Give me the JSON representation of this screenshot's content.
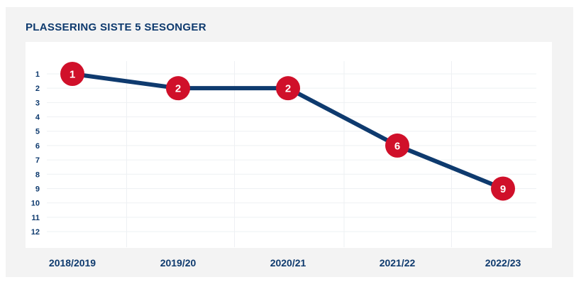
{
  "chart_data": {
    "type": "line",
    "title": "PLASSERING SISTE 5 SESONGER",
    "xlabel": "",
    "ylabel": "",
    "categories": [
      "2018/2019",
      "2019/20",
      "2020/21",
      "2021/22",
      "2022/23"
    ],
    "values": [
      1,
      2,
      2,
      6,
      9
    ],
    "data_labels": [
      "1",
      "2",
      "2",
      "6",
      "9"
    ],
    "y_ticks": [
      "1",
      "2",
      "3",
      "4",
      "5",
      "6",
      "7",
      "8",
      "9",
      "10",
      "11",
      "12"
    ],
    "ylim": [
      1,
      12
    ],
    "y_inverted": true,
    "grid": true,
    "colors": {
      "line": "#0e3a6e",
      "marker": "#d0102a",
      "grid": "#eef0f3",
      "text": "#0e3a6e"
    }
  }
}
